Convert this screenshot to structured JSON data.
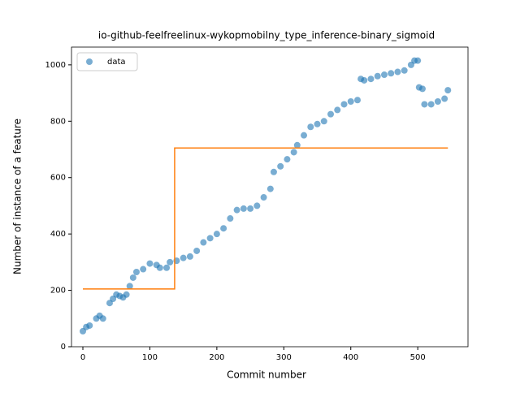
{
  "chart_data": {
    "type": "scatter",
    "title": "io-github-feelfreelinux-wykopmobilny_type_inference-binary_sigmoid",
    "xlabel": "Commit number",
    "ylabel": "Number of instance of a feature",
    "xlim": [
      -17,
      575
    ],
    "ylim": [
      0,
      1063
    ],
    "xticks": [
      0,
      100,
      200,
      300,
      400,
      500
    ],
    "yticks": [
      0,
      200,
      400,
      600,
      800,
      1000
    ],
    "legend": "upper left",
    "series": [
      {
        "name": "data",
        "type": "scatter",
        "color": "#1f77b4",
        "x": [
          0,
          5,
          10,
          20,
          25,
          30,
          40,
          45,
          50,
          55,
          60,
          65,
          70,
          75,
          80,
          90,
          100,
          110,
          115,
          125,
          130,
          140,
          150,
          160,
          170,
          180,
          190,
          200,
          210,
          220,
          230,
          240,
          250,
          260,
          270,
          280,
          285,
          295,
          305,
          315,
          320,
          330,
          340,
          350,
          360,
          370,
          380,
          390,
          400,
          410,
          415,
          420,
          430,
          440,
          450,
          460,
          470,
          480,
          490,
          495,
          500,
          502,
          507,
          510,
          520,
          530,
          540,
          545
        ],
        "y": [
          55,
          70,
          75,
          100,
          110,
          100,
          155,
          170,
          185,
          180,
          175,
          185,
          215,
          245,
          265,
          275,
          295,
          290,
          280,
          280,
          300,
          305,
          315,
          320,
          340,
          370,
          385,
          400,
          420,
          455,
          485,
          490,
          490,
          500,
          530,
          560,
          620,
          640,
          665,
          690,
          715,
          750,
          780,
          790,
          800,
          825,
          840,
          860,
          870,
          875,
          950,
          945,
          950,
          960,
          965,
          970,
          975,
          980,
          1000,
          1015,
          1015,
          920,
          915,
          860,
          860,
          870,
          880,
          910
        ]
      },
      {
        "type": "line",
        "color": "#ff7f0e",
        "x": [
          0,
          137,
          137,
          545
        ],
        "y": [
          205,
          205,
          705,
          705
        ]
      }
    ]
  }
}
